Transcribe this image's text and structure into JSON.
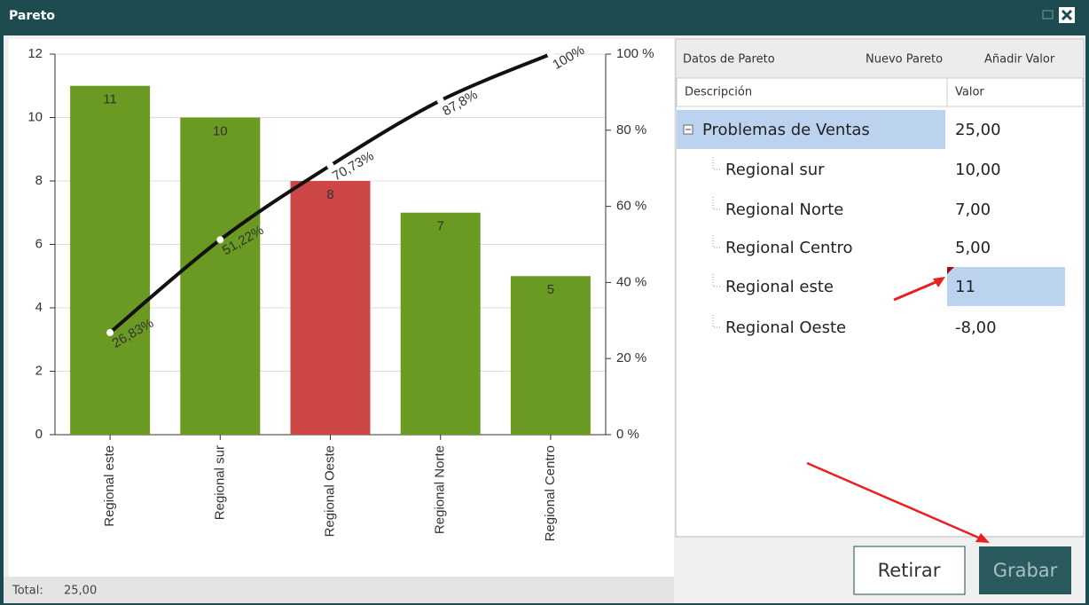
{
  "window": {
    "title": "Pareto"
  },
  "chart_data": {
    "type": "pareto",
    "categories": [
      "Regional este",
      "Regional sur",
      "Regional Oeste",
      "Regional Norte",
      "Regional Centro"
    ],
    "series": [
      {
        "colors": [
          "#6b9a22",
          "#6b9a22",
          "#cc4646",
          "#6b9a22",
          "#6b9a22"
        ],
        "values": [
          11,
          10,
          8,
          7,
          5
        ]
      },
      {
        "axis": "y2",
        "color": "#111111",
        "values": [
          26.83,
          51.22,
          70.73,
          87.8,
          100
        ],
        "value_labels": [
          "26,83%",
          "51,22%",
          "70,73%",
          "87,8%",
          "100%"
        ]
      }
    ],
    "ylim": [
      0,
      12
    ],
    "yticks": [
      0,
      2,
      4,
      6,
      8,
      10,
      12
    ],
    "y2lim": [
      0,
      100
    ],
    "y2ticks": [
      {
        "value": 0,
        "label": "0 %"
      },
      {
        "value": 20,
        "label": "20 %"
      },
      {
        "value": 40,
        "label": "40 %"
      },
      {
        "value": 60,
        "label": "60 %"
      },
      {
        "value": 80,
        "label": "80 %"
      },
      {
        "value": 100,
        "label": "100 %"
      }
    ],
    "grid": true
  },
  "panel": {
    "tabs": [
      "Datos de Pareto",
      "Nuevo Pareto",
      "Añadir Valor"
    ],
    "columns": [
      "Descripción",
      "Valor"
    ],
    "root": {
      "label": "Problemas de Ventas",
      "value": "25,00"
    },
    "rows": [
      {
        "label": "Regional sur",
        "value": "10,00"
      },
      {
        "label": "Regional Norte",
        "value": "7,00"
      },
      {
        "label": "Regional Centro",
        "value": "5,00"
      },
      {
        "label": "Regional este",
        "value": "11"
      },
      {
        "label": "Regional Oeste",
        "value": "-8,00"
      }
    ]
  },
  "buttons": [
    "Retirar",
    "Grabar"
  ],
  "footer": {
    "label": "Total:",
    "value": "25,00"
  }
}
